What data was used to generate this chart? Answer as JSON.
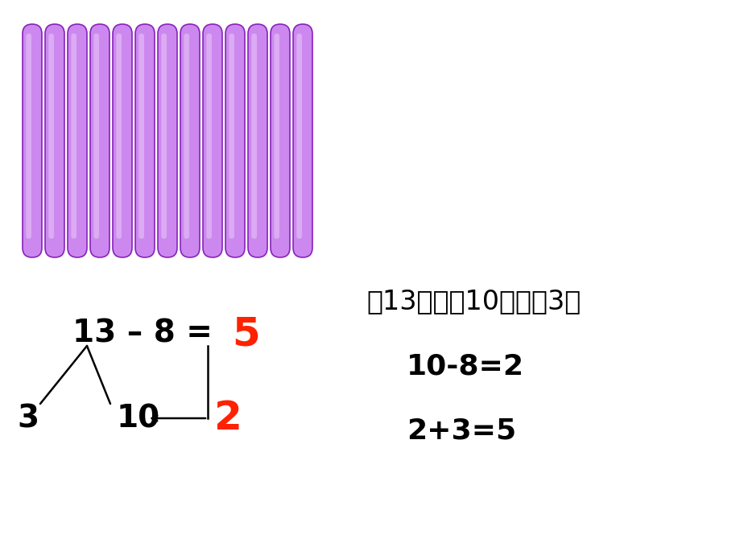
{
  "background_color": "#ffffff",
  "num_sticks": 13,
  "stick_color_main": "#cc88ee",
  "stick_color_light": "#e0aaff",
  "stick_color_dark": "#9944cc",
  "stick_outline": "#8822bb",
  "text_color": "#000000",
  "red_color": "#ff2200",
  "right_line1": "抂13分成（10）和（3）",
  "right_line2": "10-8=2",
  "right_line3": "2+3=5",
  "eq_main": "13 – 8 = ",
  "eq_answer": "5",
  "branch_answer": "2"
}
